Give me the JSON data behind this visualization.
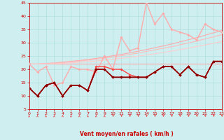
{
  "xlabel": "Vent moyen/en rafales ( km/h )",
  "xlim": [
    0,
    23
  ],
  "ylim": [
    5,
    45
  ],
  "yticks": [
    5,
    10,
    15,
    20,
    25,
    30,
    35,
    40,
    45
  ],
  "xticks": [
    0,
    1,
    2,
    3,
    4,
    5,
    6,
    7,
    8,
    9,
    10,
    11,
    12,
    13,
    14,
    15,
    16,
    17,
    18,
    19,
    20,
    21,
    22,
    23
  ],
  "bg_color": "#ceeef0",
  "grid_color": "#aadddd",
  "label_color": "#cc0000",
  "series": [
    {
      "x": [
        0,
        1,
        2,
        3,
        4,
        5,
        6,
        7,
        8,
        9,
        10,
        11,
        12,
        13,
        14,
        15,
        16,
        17,
        18,
        19,
        20,
        21,
        22,
        23
      ],
      "y": [
        22,
        22,
        22,
        22,
        22,
        22,
        22,
        22,
        22,
        22,
        22,
        22,
        22,
        22,
        22,
        22,
        22,
        22,
        22,
        22,
        22,
        22,
        22,
        22
      ],
      "color": "#ffaaaa",
      "lw": 0.8,
      "marker": null,
      "ms": 0,
      "zorder": 2
    },
    {
      "x": [
        0,
        1,
        2,
        3,
        4,
        5,
        6,
        7,
        8,
        9,
        10,
        11,
        12,
        13,
        14,
        15,
        16,
        17,
        18,
        19,
        20,
        21,
        22,
        23
      ],
      "y": [
        22,
        22,
        22.2,
        22.4,
        22.7,
        23.0,
        23.3,
        23.7,
        24.1,
        24.6,
        25.1,
        25.6,
        26.2,
        26.8,
        27.4,
        28.1,
        28.8,
        29.5,
        30.3,
        31.1,
        31.9,
        32.8,
        33.7,
        34.6
      ],
      "color": "#ffaaaa",
      "lw": 0.8,
      "marker": null,
      "ms": 0,
      "zorder": 2
    },
    {
      "x": [
        0,
        1,
        2,
        3,
        4,
        5,
        6,
        7,
        8,
        9,
        10,
        11,
        12,
        13,
        14,
        15,
        16,
        17,
        18,
        19,
        20,
        21,
        22,
        23
      ],
      "y": [
        22,
        22,
        22.1,
        22.3,
        22.5,
        22.8,
        23.1,
        23.4,
        23.8,
        24.2,
        24.6,
        25.1,
        25.6,
        26.1,
        26.7,
        27.3,
        27.9,
        28.5,
        29.2,
        29.9,
        30.6,
        31.4,
        32.2,
        33.0
      ],
      "color": "#ffbbbb",
      "lw": 0.8,
      "marker": null,
      "ms": 0,
      "zorder": 2
    },
    {
      "x": [
        0,
        1,
        2,
        3,
        4,
        5,
        6,
        7,
        8,
        9,
        10,
        11,
        12,
        13,
        14,
        15,
        16,
        17,
        18,
        19,
        20,
        21,
        22,
        23
      ],
      "y": [
        22,
        22,
        22.05,
        22.15,
        22.25,
        22.45,
        22.65,
        22.9,
        23.15,
        23.45,
        23.8,
        24.15,
        24.55,
        24.95,
        25.4,
        25.85,
        26.35,
        26.85,
        27.4,
        27.95,
        28.55,
        29.15,
        29.8,
        30.45
      ],
      "color": "#ffcccc",
      "lw": 0.8,
      "marker": null,
      "ms": 0,
      "zorder": 2
    },
    {
      "x": [
        0,
        1,
        2,
        3,
        4,
        5,
        6,
        7,
        8,
        9,
        10,
        11,
        12,
        13,
        14,
        15,
        16,
        17,
        18,
        19,
        20,
        21,
        22,
        23
      ],
      "y": [
        22,
        19,
        21,
        14,
        15,
        21,
        20,
        20,
        19,
        25,
        20,
        32,
        27,
        28,
        45,
        37,
        41,
        35,
        34,
        33,
        31,
        37,
        35,
        34
      ],
      "color": "#ffaaaa",
      "lw": 1.0,
      "marker": "D",
      "ms": 1.8,
      "zorder": 3
    },
    {
      "x": [
        0,
        1,
        2,
        3,
        4,
        5,
        6,
        7,
        8,
        9,
        10,
        11,
        12,
        13,
        14,
        15,
        16,
        17,
        18,
        19,
        20,
        21,
        22,
        23
      ],
      "y": [
        13,
        10,
        14,
        15,
        10,
        14,
        14,
        12,
        21,
        21,
        20,
        20,
        18,
        17,
        17,
        19,
        21,
        21,
        18,
        21,
        18,
        17,
        23,
        23
      ],
      "color": "#ff4444",
      "lw": 1.0,
      "marker": "D",
      "ms": 1.8,
      "zorder": 4
    },
    {
      "x": [
        0,
        1,
        2,
        3,
        4,
        5,
        6,
        7,
        8,
        9,
        10,
        11,
        12,
        13,
        14,
        15,
        16,
        17,
        18,
        19,
        20,
        21,
        22,
        23
      ],
      "y": [
        13,
        10,
        14,
        15,
        10,
        14,
        14,
        12,
        20,
        20,
        17,
        17,
        17,
        17,
        17,
        19,
        21,
        21,
        18,
        21,
        18,
        17,
        23,
        23
      ],
      "color": "#dd2222",
      "lw": 1.0,
      "marker": "D",
      "ms": 1.8,
      "zorder": 4
    },
    {
      "x": [
        0,
        1,
        2,
        3,
        4,
        5,
        6,
        7,
        8,
        9,
        10,
        11,
        12,
        13,
        14,
        15,
        16,
        17,
        18,
        19,
        20,
        21,
        22,
        23
      ],
      "y": [
        13,
        10,
        14,
        15,
        10,
        14,
        14,
        12,
        20,
        20,
        17,
        17,
        17,
        17,
        17,
        19,
        21,
        21,
        18,
        21,
        18,
        17,
        23,
        23
      ],
      "color": "#aa0000",
      "lw": 1.0,
      "marker": "D",
      "ms": 1.8,
      "zorder": 4
    },
    {
      "x": [
        0,
        1,
        2,
        3,
        4,
        5,
        6,
        7,
        8,
        9,
        10,
        11,
        12,
        13,
        14,
        15,
        16,
        17,
        18,
        19,
        20,
        21,
        22,
        23
      ],
      "y": [
        13,
        10,
        14,
        15,
        10,
        14,
        14,
        12,
        20,
        20,
        17,
        17,
        17,
        17,
        17,
        19,
        21,
        21,
        18,
        21,
        18,
        17,
        23,
        23
      ],
      "color": "#880000",
      "lw": 1.0,
      "marker": "D",
      "ms": 1.8,
      "zorder": 4
    }
  ],
  "arrows_angles": [
    0,
    0,
    0,
    0,
    0,
    0,
    0,
    0,
    0,
    0,
    45,
    45,
    45,
    45,
    45,
    45,
    45,
    45,
    45,
    45,
    45,
    45,
    45,
    45
  ]
}
